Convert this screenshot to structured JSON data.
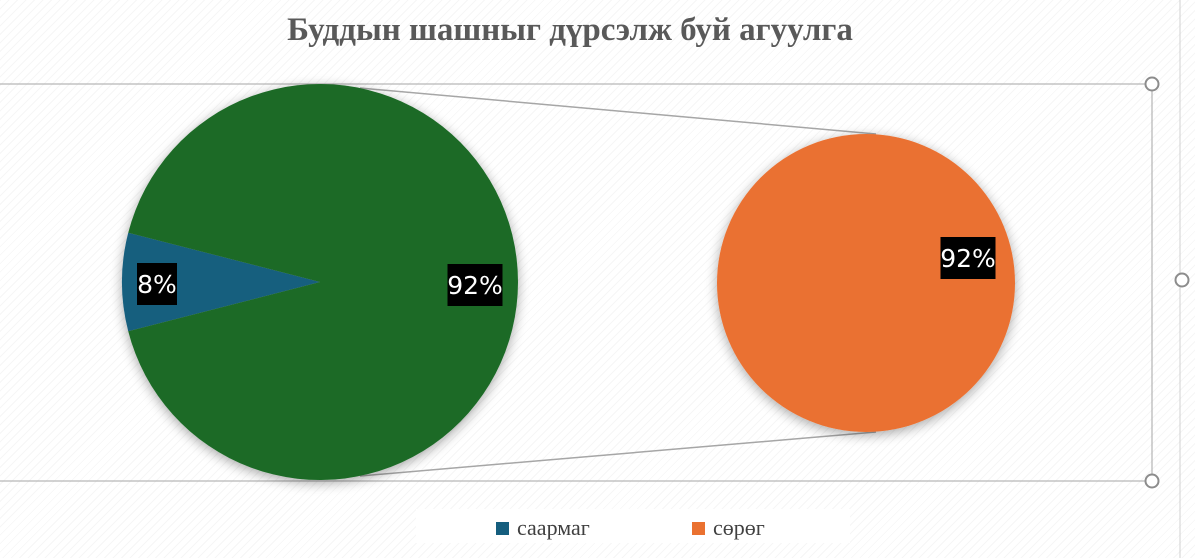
{
  "chart_data": {
    "type": "pie",
    "title": "Буддын шашныг дүрсэлж буй агуулга",
    "subtype": "pie-of-pie",
    "slices": [
      {
        "label": "саармаг",
        "value": 8,
        "display": "8%",
        "color": "#155e7e"
      },
      {
        "label": "сөрөг",
        "value": 92,
        "display": "92%",
        "color": "#1b6b26"
      }
    ],
    "secondary": [
      {
        "label": "сөрөг",
        "value": 92,
        "display": "92%",
        "color": "#ea7130"
      }
    ],
    "legend": {
      "position": "bottom",
      "entries": [
        {
          "label": "саармаг",
          "color": "#155e7e"
        },
        {
          "label": "сөрөг",
          "color": "#ea7130"
        }
      ]
    }
  }
}
